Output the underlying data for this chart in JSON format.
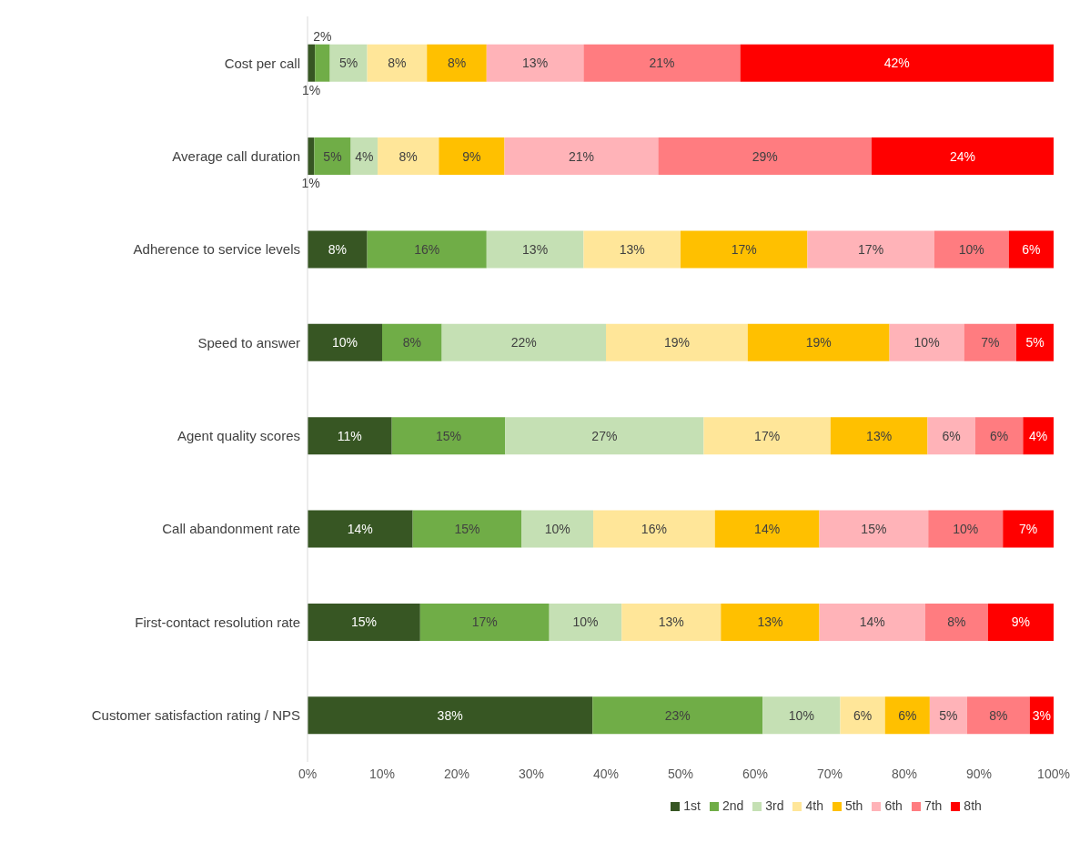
{
  "chart_data": {
    "type": "bar",
    "orientation": "horizontal",
    "stacked": true,
    "categories": [
      "Cost per call",
      "Average call duration",
      "Adherence to service levels",
      "Speed to answer",
      "Agent quality scores",
      "Call abandonment rate",
      "First-contact resolution rate",
      "Customer satisfaction rating / NPS"
    ],
    "xlim": [
      0,
      100
    ],
    "xticks": [
      {
        "value": 0,
        "label": "0%"
      },
      {
        "value": 10,
        "label": "10%"
      },
      {
        "value": 20,
        "label": "20%"
      },
      {
        "value": 30,
        "label": "30%"
      },
      {
        "value": 40,
        "label": "40%"
      },
      {
        "value": 50,
        "label": "50%"
      },
      {
        "value": 60,
        "label": "60%"
      },
      {
        "value": 70,
        "label": "70%"
      },
      {
        "value": 80,
        "label": "80%"
      },
      {
        "value": 90,
        "label": "90%"
      },
      {
        "value": 100,
        "label": "100%"
      }
    ],
    "grid": false,
    "legend": "bottom",
    "series": [
      {
        "name": "1st",
        "color": "#375623",
        "values": [
          1,
          0.9,
          8,
          10,
          11.3,
          14.1,
          15.1,
          38.2
        ],
        "value_labels": [
          "1%",
          "1%",
          "8%",
          "10%",
          "11%",
          "14%",
          "15%",
          "38%"
        ]
      },
      {
        "name": "2nd",
        "color": "#70ad47",
        "values": [
          2,
          4.9,
          16,
          8,
          15.2,
          14.6,
          17.3,
          22.8
        ],
        "value_labels": [
          "2%",
          "5%",
          "16%",
          "8%",
          "15%",
          "15%",
          "17%",
          "23%"
        ]
      },
      {
        "name": "3rd",
        "color": "#c5e0b4",
        "values": [
          5,
          3.6,
          13,
          22,
          26.6,
          9.6,
          9.7,
          10.4
        ],
        "value_labels": [
          "5%",
          "4%",
          "13%",
          "22%",
          "27%",
          "10%",
          "10%",
          "10%"
        ]
      },
      {
        "name": "4th",
        "color": "#ffe699",
        "values": [
          8,
          8.2,
          13,
          19,
          17,
          16.3,
          13.3,
          6
        ],
        "value_labels": [
          "8%",
          "8%",
          "13%",
          "19%",
          "17%",
          "16%",
          "13%",
          "6%"
        ]
      },
      {
        "name": "5th",
        "color": "#ffc000",
        "values": [
          8,
          8.8,
          17,
          19,
          13,
          14,
          13.2,
          6
        ],
        "value_labels": [
          "8%",
          "9%",
          "17%",
          "19%",
          "13%",
          "14%",
          "13%",
          "6%"
        ]
      },
      {
        "name": "6th",
        "color": "#ffb3b8",
        "values": [
          13,
          20.6,
          17,
          10,
          6.4,
          14.6,
          14.2,
          5
        ],
        "value_labels": [
          "13%",
          "21%",
          "17%",
          "10%",
          "6%",
          "15%",
          "14%",
          "5%"
        ]
      },
      {
        "name": "7th",
        "color": "#ff7c80",
        "values": [
          21,
          28.6,
          10,
          7,
          6.4,
          10,
          8.4,
          8.4
        ],
        "value_labels": [
          "21%",
          "29%",
          "10%",
          "7%",
          "6%",
          "10%",
          "8%",
          "8%"
        ]
      },
      {
        "name": "8th",
        "color": "#ff0000",
        "values": [
          42,
          24.4,
          6,
          5,
          4.1,
          6.8,
          8.8,
          3.2
        ],
        "value_labels": [
          "42%",
          "24%",
          "6%",
          "5%",
          "4%",
          "7%",
          "9%",
          "3%"
        ]
      }
    ]
  }
}
